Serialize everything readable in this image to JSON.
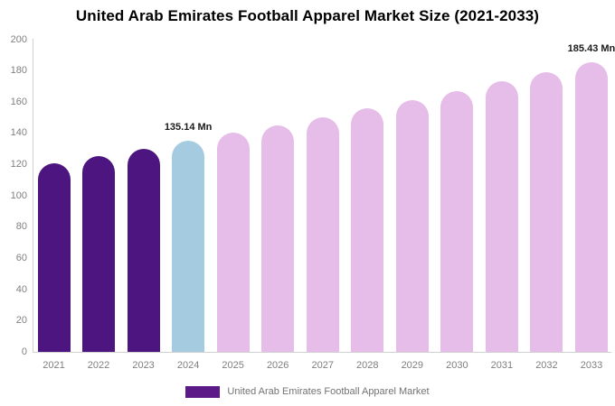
{
  "title": "United Arab Emirates Football Apparel Market Size (2021-2033)",
  "legend": {
    "label": "United Arab Emirates Football Apparel Market",
    "swatch_color": "#5b1a87"
  },
  "colors": {
    "historical": "#4d1580",
    "highlight": "#a4cbdf",
    "forecast": "#e6bce8",
    "axis_line": "#d0d0d0",
    "tick_text": "#7f7f7f",
    "annotation_text": "#1a1a1a",
    "title_text": "#000000",
    "legend_text": "#737373"
  },
  "chart_data": {
    "type": "bar",
    "categories": [
      "2021",
      "2022",
      "2023",
      "2024",
      "2025",
      "2026",
      "2027",
      "2028",
      "2029",
      "2030",
      "2031",
      "2032",
      "2033"
    ],
    "values": [
      120.9,
      125.5,
      130.1,
      135.14,
      140.0,
      145.0,
      150.2,
      155.6,
      161.1,
      166.9,
      172.9,
      179.0,
      185.43
    ],
    "bar_roles": [
      "historical",
      "historical",
      "historical",
      "highlight",
      "forecast",
      "forecast",
      "forecast",
      "forecast",
      "forecast",
      "forecast",
      "forecast",
      "forecast",
      "forecast"
    ],
    "annotations": [
      {
        "category": "2024",
        "text": "135.14 Mn"
      },
      {
        "category": "2033",
        "text": "185.43 Mn"
      }
    ],
    "title": "United Arab Emirates Football Apparel Market Size (2021-2033)",
    "xlabel": "",
    "ylabel": "",
    "unit": "Mn",
    "ylim": [
      0,
      200
    ],
    "yticks": [
      0,
      20,
      40,
      60,
      80,
      100,
      120,
      140,
      160,
      180,
      200
    ],
    "grid": false,
    "legend_position": "bottom"
  }
}
